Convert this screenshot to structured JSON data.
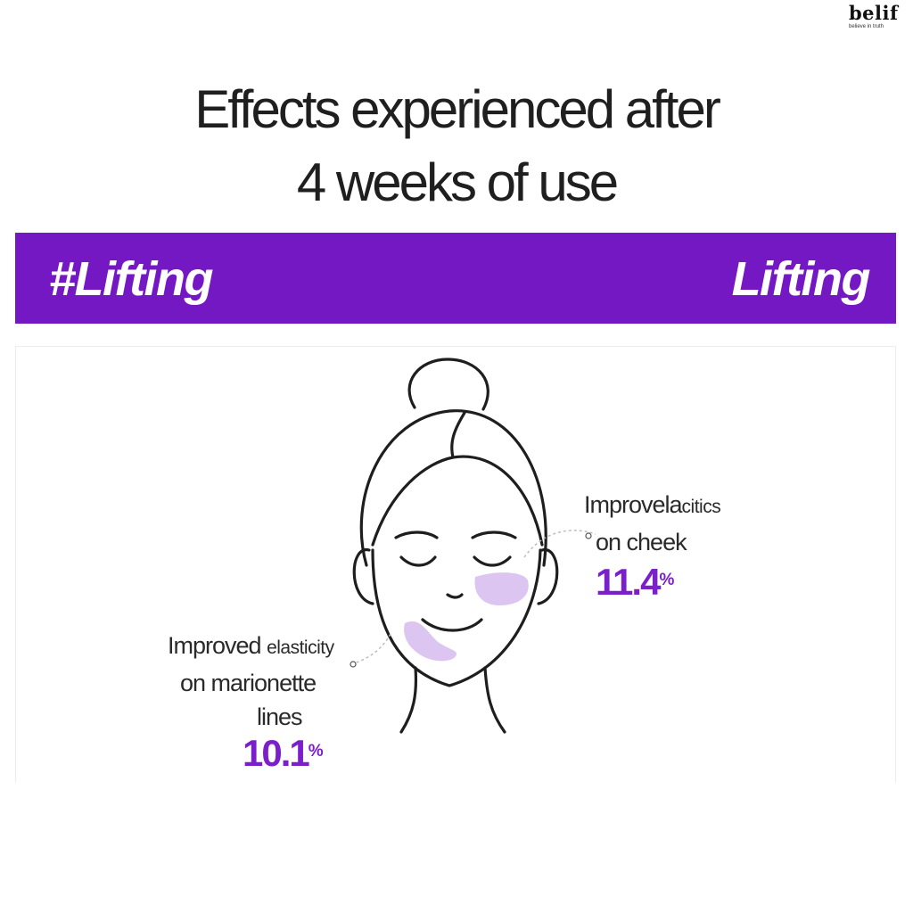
{
  "brand": {
    "name": "belif",
    "tagline": "believe in truth"
  },
  "title": {
    "line1": "Effects experienced after",
    "line2": "4 weeks of use"
  },
  "banner": {
    "hashtag": "#Lifting",
    "label": "Lifting",
    "color": "#7418c4"
  },
  "annotations": {
    "cheek": {
      "line1_main": "Improvela",
      "line1_small": "citics",
      "line2": "on cheek",
      "value": "11.4",
      "unit": "%"
    },
    "marionette": {
      "line1_main": "Improved",
      "line1_small": "elasticity",
      "line2": "on marionette",
      "line3": "lines",
      "value": "10.1",
      "unit": "%"
    }
  },
  "colors": {
    "accent": "#7a1fc9",
    "highlight": "#dcc6f1",
    "line": "#1e1e1e"
  },
  "icons": {
    "face": "face-line-illustration"
  }
}
